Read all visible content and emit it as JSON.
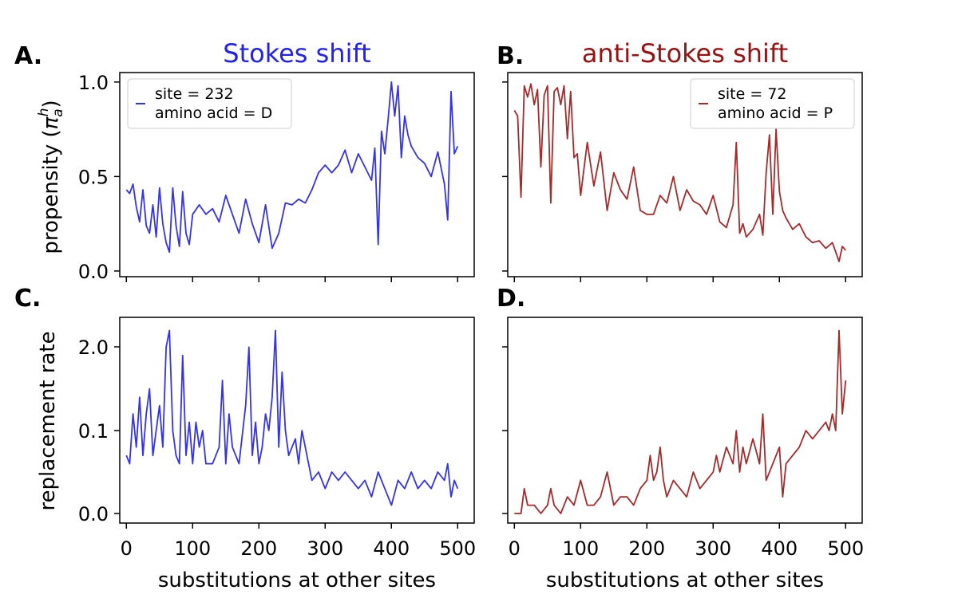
{
  "figure": {
    "xlabel": "substitutions at other sites",
    "column_titles": [
      "Stokes shift",
      "anti-Stokes shift"
    ],
    "panel_labels": [
      "A.",
      "B.",
      "C.",
      "D."
    ],
    "ylabel_top_text": "propensity (",
    "ylabel_top_symbol": "π",
    "ylabel_top_sub": "a",
    "ylabel_top_sup": "h",
    "ylabel_top_close": ")",
    "ylabel_bottom": "replacement rate",
    "colors": {
      "stokes": "#3333ee",
      "anti_stokes": "#a52a2a",
      "title_anti": "#991111"
    }
  },
  "chart_data": [
    {
      "panel": "A",
      "type": "line",
      "title": "Stokes shift",
      "legend": [
        "site = 232",
        "amino acid = D"
      ],
      "legend_placement": "top-left",
      "ylabel": "propensity (π_a^h)",
      "xlim": [
        -10,
        525
      ],
      "ylim": [
        0,
        1.0
      ],
      "yticks": [
        0.0,
        0.5,
        1.0
      ],
      "ytick_labels": [
        "0.0",
        "0.5",
        "1.0"
      ],
      "xticks": [
        0,
        100,
        200,
        300,
        400,
        500
      ],
      "xtick_labels": [],
      "color": "#3333ee",
      "x": [
        0,
        5,
        10,
        15,
        20,
        25,
        30,
        35,
        40,
        45,
        50,
        55,
        60,
        65,
        70,
        75,
        80,
        85,
        90,
        95,
        100,
        110,
        120,
        130,
        140,
        150,
        160,
        170,
        180,
        190,
        200,
        210,
        220,
        230,
        240,
        250,
        260,
        270,
        280,
        290,
        300,
        310,
        320,
        330,
        340,
        350,
        360,
        370,
        375,
        380,
        385,
        390,
        395,
        400,
        405,
        410,
        415,
        420,
        425,
        430,
        440,
        450,
        460,
        470,
        480,
        485,
        490,
        495,
        500
      ],
      "y": [
        0.43,
        0.41,
        0.46,
        0.34,
        0.26,
        0.43,
        0.24,
        0.2,
        0.35,
        0.18,
        0.44,
        0.25,
        0.15,
        0.1,
        0.44,
        0.24,
        0.13,
        0.42,
        0.2,
        0.14,
        0.3,
        0.35,
        0.3,
        0.33,
        0.26,
        0.4,
        0.3,
        0.2,
        0.38,
        0.25,
        0.15,
        0.35,
        0.12,
        0.2,
        0.36,
        0.35,
        0.38,
        0.36,
        0.43,
        0.52,
        0.56,
        0.52,
        0.56,
        0.64,
        0.52,
        0.62,
        0.55,
        0.48,
        0.65,
        0.14,
        0.74,
        0.62,
        0.8,
        1.0,
        0.82,
        0.98,
        0.6,
        0.82,
        0.72,
        0.66,
        0.6,
        0.57,
        0.5,
        0.63,
        0.46,
        0.27,
        0.95,
        0.62,
        0.66
      ]
    },
    {
      "panel": "B",
      "type": "line",
      "title": "anti-Stokes shift",
      "legend": [
        "site = 72",
        "amino acid = P"
      ],
      "legend_placement": "top-right",
      "xlim": [
        -10,
        525
      ],
      "ylim": [
        0,
        1.0
      ],
      "yticks": [
        0.0,
        0.5,
        1.0
      ],
      "xticks": [
        0,
        100,
        200,
        300,
        400,
        500
      ],
      "xtick_labels": [],
      "color": "#a52a2a",
      "x": [
        0,
        5,
        10,
        15,
        20,
        25,
        30,
        35,
        40,
        45,
        50,
        55,
        60,
        65,
        70,
        75,
        80,
        85,
        90,
        95,
        100,
        110,
        120,
        130,
        140,
        150,
        160,
        170,
        180,
        190,
        200,
        210,
        220,
        230,
        240,
        250,
        260,
        270,
        280,
        290,
        300,
        310,
        320,
        330,
        335,
        340,
        345,
        350,
        360,
        370,
        375,
        380,
        385,
        390,
        395,
        400,
        405,
        410,
        415,
        420,
        430,
        440,
        450,
        460,
        470,
        480,
        490,
        495,
        500
      ],
      "y": [
        0.85,
        0.82,
        0.39,
        0.98,
        0.92,
        0.99,
        0.88,
        0.96,
        0.55,
        0.93,
        0.98,
        0.36,
        0.95,
        0.97,
        0.88,
        0.98,
        0.7,
        0.95,
        0.6,
        0.62,
        0.4,
        0.68,
        0.45,
        0.63,
        0.32,
        0.52,
        0.43,
        0.38,
        0.55,
        0.32,
        0.3,
        0.3,
        0.4,
        0.36,
        0.5,
        0.32,
        0.43,
        0.37,
        0.35,
        0.3,
        0.4,
        0.26,
        0.23,
        0.35,
        0.68,
        0.2,
        0.25,
        0.18,
        0.22,
        0.3,
        0.19,
        0.52,
        0.72,
        0.3,
        0.75,
        0.42,
        0.32,
        0.28,
        0.25,
        0.22,
        0.25,
        0.18,
        0.15,
        0.16,
        0.12,
        0.15,
        0.05,
        0.13,
        0.11
      ]
    },
    {
      "panel": "C",
      "type": "line",
      "ylabel": "replacement rate",
      "xlabel": "substitutions at other sites",
      "xlim": [
        -10,
        525
      ],
      "yticks": [
        0.0,
        0.1,
        2.0
      ],
      "ytick_labels": [
        "0.0",
        "0.1",
        "2.0"
      ],
      "xticks": [
        0,
        100,
        200,
        300,
        400,
        500
      ],
      "xtick_labels": [
        "0",
        "100",
        "200",
        "300",
        "400",
        "500"
      ],
      "color": "#3333ee",
      "x": [
        0,
        5,
        10,
        15,
        20,
        25,
        30,
        35,
        40,
        45,
        50,
        55,
        60,
        65,
        70,
        75,
        80,
        85,
        90,
        95,
        100,
        105,
        110,
        115,
        120,
        130,
        140,
        145,
        150,
        155,
        160,
        170,
        180,
        185,
        190,
        195,
        200,
        205,
        210,
        215,
        220,
        225,
        230,
        235,
        240,
        245,
        250,
        255,
        260,
        265,
        270,
        280,
        290,
        300,
        310,
        320,
        330,
        340,
        350,
        360,
        370,
        380,
        390,
        400,
        410,
        420,
        430,
        440,
        450,
        460,
        470,
        480,
        485,
        490,
        495,
        500
      ],
      "y": [
        0.07,
        0.06,
        0.12,
        0.08,
        0.14,
        0.07,
        0.12,
        0.15,
        0.07,
        0.1,
        0.13,
        0.08,
        0.2,
        0.22,
        0.1,
        0.07,
        0.06,
        0.19,
        0.07,
        0.11,
        0.06,
        0.11,
        0.08,
        0.1,
        0.06,
        0.06,
        0.08,
        0.16,
        0.06,
        0.12,
        0.08,
        0.06,
        0.13,
        0.2,
        0.07,
        0.11,
        0.06,
        0.08,
        0.12,
        0.1,
        0.14,
        0.22,
        0.08,
        0.17,
        0.1,
        0.07,
        0.08,
        0.09,
        0.06,
        0.1,
        0.08,
        0.04,
        0.05,
        0.03,
        0.05,
        0.04,
        0.05,
        0.04,
        0.03,
        0.04,
        0.02,
        0.05,
        0.03,
        0.01,
        0.04,
        0.03,
        0.05,
        0.03,
        0.04,
        0.03,
        0.05,
        0.04,
        0.06,
        0.02,
        0.04,
        0.03
      ],
      "plot_y": [
        0.07,
        0.06,
        0.12,
        0.08,
        0.14,
        0.07,
        0.12,
        0.15,
        0.07,
        0.1,
        0.13,
        0.08,
        0.2,
        0.22,
        0.1,
        0.07,
        0.06,
        0.19,
        0.07,
        0.11,
        0.06,
        0.11,
        0.08,
        0.1,
        0.06,
        0.06,
        0.08,
        0.16,
        0.06,
        0.12,
        0.08,
        0.06,
        0.13,
        0.2,
        0.07,
        0.11,
        0.06,
        0.08,
        0.12,
        0.1,
        0.14,
        0.22,
        0.08,
        0.17,
        0.1,
        0.07,
        0.08,
        0.09,
        0.06,
        0.1,
        0.08,
        0.04,
        0.05,
        0.03,
        0.05,
        0.04,
        0.05,
        0.04,
        0.03,
        0.04,
        0.02,
        0.05,
        0.03,
        0.01,
        0.04,
        0.03,
        0.05,
        0.03,
        0.04,
        0.03,
        0.05,
        0.04,
        0.06,
        0.02,
        0.04,
        0.03
      ],
      "ylim": [
        0,
        0.23
      ]
    },
    {
      "panel": "D",
      "type": "line",
      "xlabel": "substitutions at other sites",
      "xlim": [
        -10,
        525
      ],
      "ylim": [
        0,
        0.23
      ],
      "yticks": [
        0.0,
        0.1,
        2.0
      ],
      "xticks": [
        0,
        100,
        200,
        300,
        400,
        500
      ],
      "xtick_labels": [
        "0",
        "100",
        "200",
        "300",
        "400",
        "500"
      ],
      "color": "#a52a2a",
      "x": [
        0,
        5,
        10,
        15,
        20,
        30,
        40,
        50,
        55,
        60,
        70,
        80,
        90,
        100,
        110,
        120,
        130,
        140,
        150,
        160,
        170,
        180,
        190,
        200,
        205,
        210,
        215,
        220,
        225,
        230,
        240,
        250,
        260,
        270,
        280,
        290,
        300,
        305,
        310,
        320,
        330,
        335,
        340,
        345,
        350,
        360,
        370,
        375,
        380,
        390,
        400,
        405,
        410,
        420,
        430,
        440,
        450,
        460,
        470,
        475,
        480,
        485,
        490,
        495,
        500
      ],
      "y": [
        0.0,
        0.0,
        0.0,
        0.03,
        0.01,
        0.01,
        0.0,
        0.01,
        0.03,
        0.01,
        0.0,
        0.02,
        0.01,
        0.04,
        0.01,
        0.01,
        0.02,
        0.05,
        0.01,
        0.02,
        0.02,
        0.01,
        0.03,
        0.04,
        0.07,
        0.04,
        0.05,
        0.08,
        0.04,
        0.02,
        0.04,
        0.03,
        0.02,
        0.05,
        0.03,
        0.04,
        0.05,
        0.07,
        0.05,
        0.08,
        0.06,
        0.1,
        0.05,
        0.08,
        0.06,
        0.09,
        0.06,
        0.12,
        0.04,
        0.06,
        0.08,
        0.02,
        0.06,
        0.07,
        0.08,
        0.1,
        0.09,
        0.1,
        0.11,
        0.1,
        0.12,
        0.1,
        0.22,
        0.12,
        0.16
      ]
    }
  ]
}
